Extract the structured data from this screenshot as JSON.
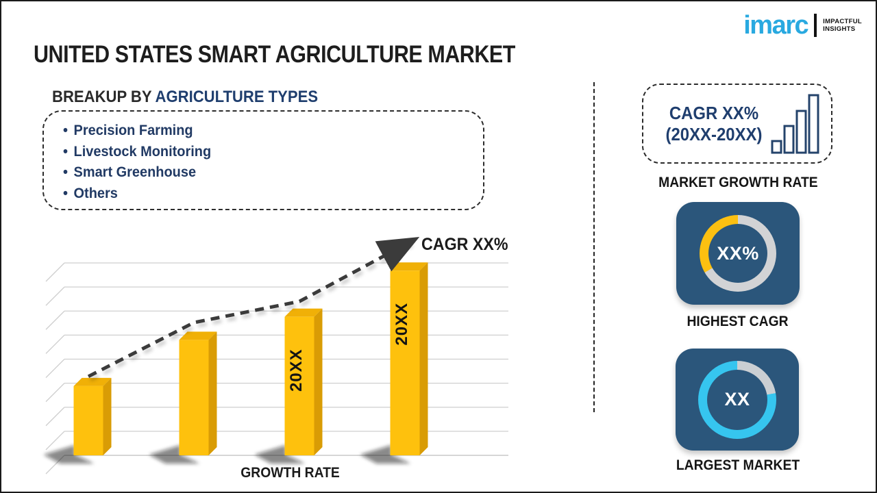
{
  "header": {
    "title": "UNITED STATES SMART AGRICULTURE MARKET"
  },
  "logo": {
    "brand": "imarc",
    "tagline1": "IMPACTFUL",
    "tagline2": "INSIGHTS",
    "brand_color": "#29a9e0"
  },
  "breakup": {
    "heading_prefix": "BREAKUP BY ",
    "heading_highlight": "AGRICULTURE TYPES",
    "bullet": "•",
    "items": [
      "Precision Farming",
      "Livestock Monitoring",
      "Smart Greenhouse",
      "Others"
    ]
  },
  "chart_data": {
    "type": "bar",
    "title": "",
    "xlabel": "GROWTH RATE",
    "ylabel": "",
    "gridlines": 9,
    "grid_on": true,
    "categories": [
      "",
      "",
      "20XX",
      "20XX"
    ],
    "bars": [
      {
        "label": "",
        "height_pct": 36
      },
      {
        "label": "",
        "height_pct": 60
      },
      {
        "label": "20XX",
        "height_pct": 72
      },
      {
        "label": "20XX",
        "height_pct": 96
      }
    ],
    "trend": {
      "label": "CAGR XX%",
      "points_pct": [
        41,
        69,
        80,
        111
      ],
      "style": "dashed-arrow"
    },
    "colors": {
      "front": "#fec10d",
      "top": "#f0b007",
      "side": "#d99c05",
      "grid": "#cfcfcf",
      "trend": "#3b3b3b"
    },
    "values_are_placeholders": true
  },
  "right_panel": {
    "growth_box": {
      "line1": "CAGR XX%",
      "line2": "(20XX-20XX)"
    },
    "market_growth_label": "MARKET GROWTH RATE",
    "highest_cagr": {
      "value": "XX%",
      "label": "HIGHEST CAGR",
      "ring": {
        "rest": "#d2d3d5",
        "main": "#fcc011",
        "split_deg": 240
      }
    },
    "largest_market": {
      "value": "XX",
      "label": "LARGEST MARKET",
      "ring": {
        "rest": "#cbcfd3",
        "main": "#36c5ef",
        "split_deg": 80
      }
    }
  },
  "colors": {
    "card_bg": "#2b567b",
    "navy_text": "#1f3e6e",
    "accent_yellow": "#fec10d",
    "accent_cyan": "#36c5ef"
  }
}
